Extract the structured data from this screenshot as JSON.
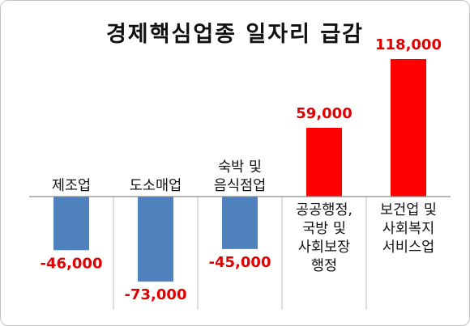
{
  "chart_data": {
    "type": "bar",
    "title": "경제핵심업종 일자리 급감",
    "categories": [
      [
        "제조업"
      ],
      [
        "도소매업"
      ],
      [
        "숙박 및",
        "음식점업"
      ],
      [
        "공공행정,",
        "국방 및",
        "사회보장",
        "행정"
      ],
      [
        "보건업 및",
        "사회복지",
        "서비스업"
      ]
    ],
    "values": [
      -46000,
      -73000,
      -45000,
      59000,
      118000
    ],
    "value_labels": [
      "-46,000",
      "-73,000",
      "-45,000",
      "59,000",
      "118,000"
    ],
    "ylim": [
      -80000,
      125000
    ],
    "grid": false,
    "legend": "none",
    "colors": {
      "negative_bar": "#4f81bd",
      "positive_bar": "#ff0000",
      "value_label": "#e00000",
      "axis": "#8c8c8c",
      "divider": "#bfbfbf"
    }
  }
}
